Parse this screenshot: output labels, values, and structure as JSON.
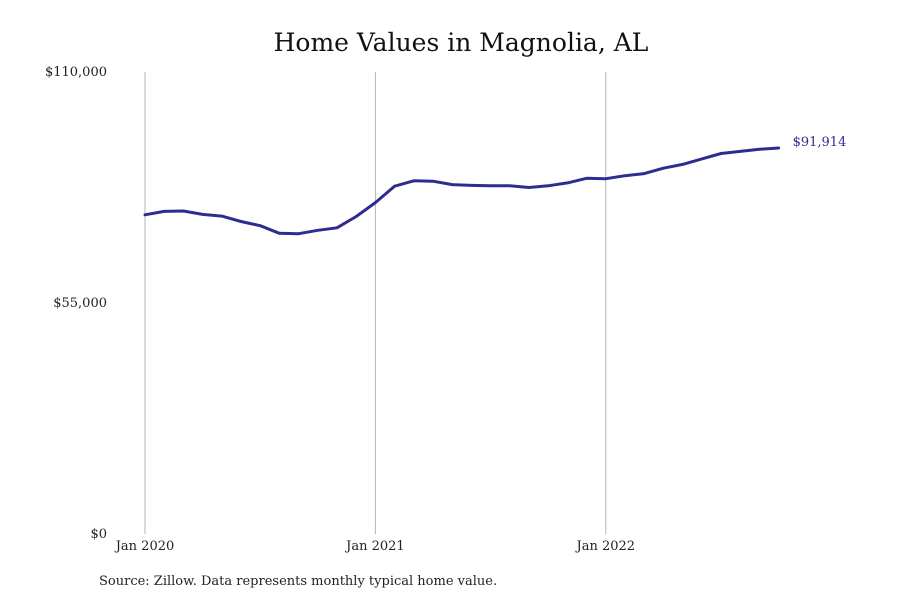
{
  "chart_data": {
    "type": "line",
    "title": "Home Values in Magnolia, AL",
    "source": "Source: Zillow. Data represents monthly typical home value.",
    "ylim": [
      0,
      110000
    ],
    "yticks": [
      0,
      55000,
      110000
    ],
    "ytick_labels": [
      "$0",
      "$55,000",
      "$110,000"
    ],
    "xticks": [
      "Jan 2020",
      "Jan 2021",
      "Jan 2022"
    ],
    "grid": "vertical lines at Jan of each year",
    "x": [
      "2020-01",
      "2020-02",
      "2020-03",
      "2020-04",
      "2020-05",
      "2020-06",
      "2020-07",
      "2020-08",
      "2020-09",
      "2020-10",
      "2020-11",
      "2020-12",
      "2021-01",
      "2021-02",
      "2021-03",
      "2021-04",
      "2021-05",
      "2021-06",
      "2021-07",
      "2021-08",
      "2021-09",
      "2021-10",
      "2021-11",
      "2021-12",
      "2022-01",
      "2022-02",
      "2022-03",
      "2022-04",
      "2022-05",
      "2022-06",
      "2022-07",
      "2022-08",
      "2022-09",
      "2022-10"
    ],
    "series": [
      {
        "color": "#2e2d8f",
        "values": [
          76000,
          76800,
          76900,
          76100,
          75700,
          74400,
          73400,
          71600,
          71500,
          72300,
          72900,
          75600,
          78900,
          82800,
          84100,
          84000,
          83200,
          83000,
          82900,
          82900,
          82500,
          82900,
          83600,
          84700,
          84600,
          85300,
          85800,
          87100,
          88000,
          89300,
          90600,
          91100,
          91600,
          91914
        ],
        "end_label": "$91,914"
      }
    ]
  }
}
